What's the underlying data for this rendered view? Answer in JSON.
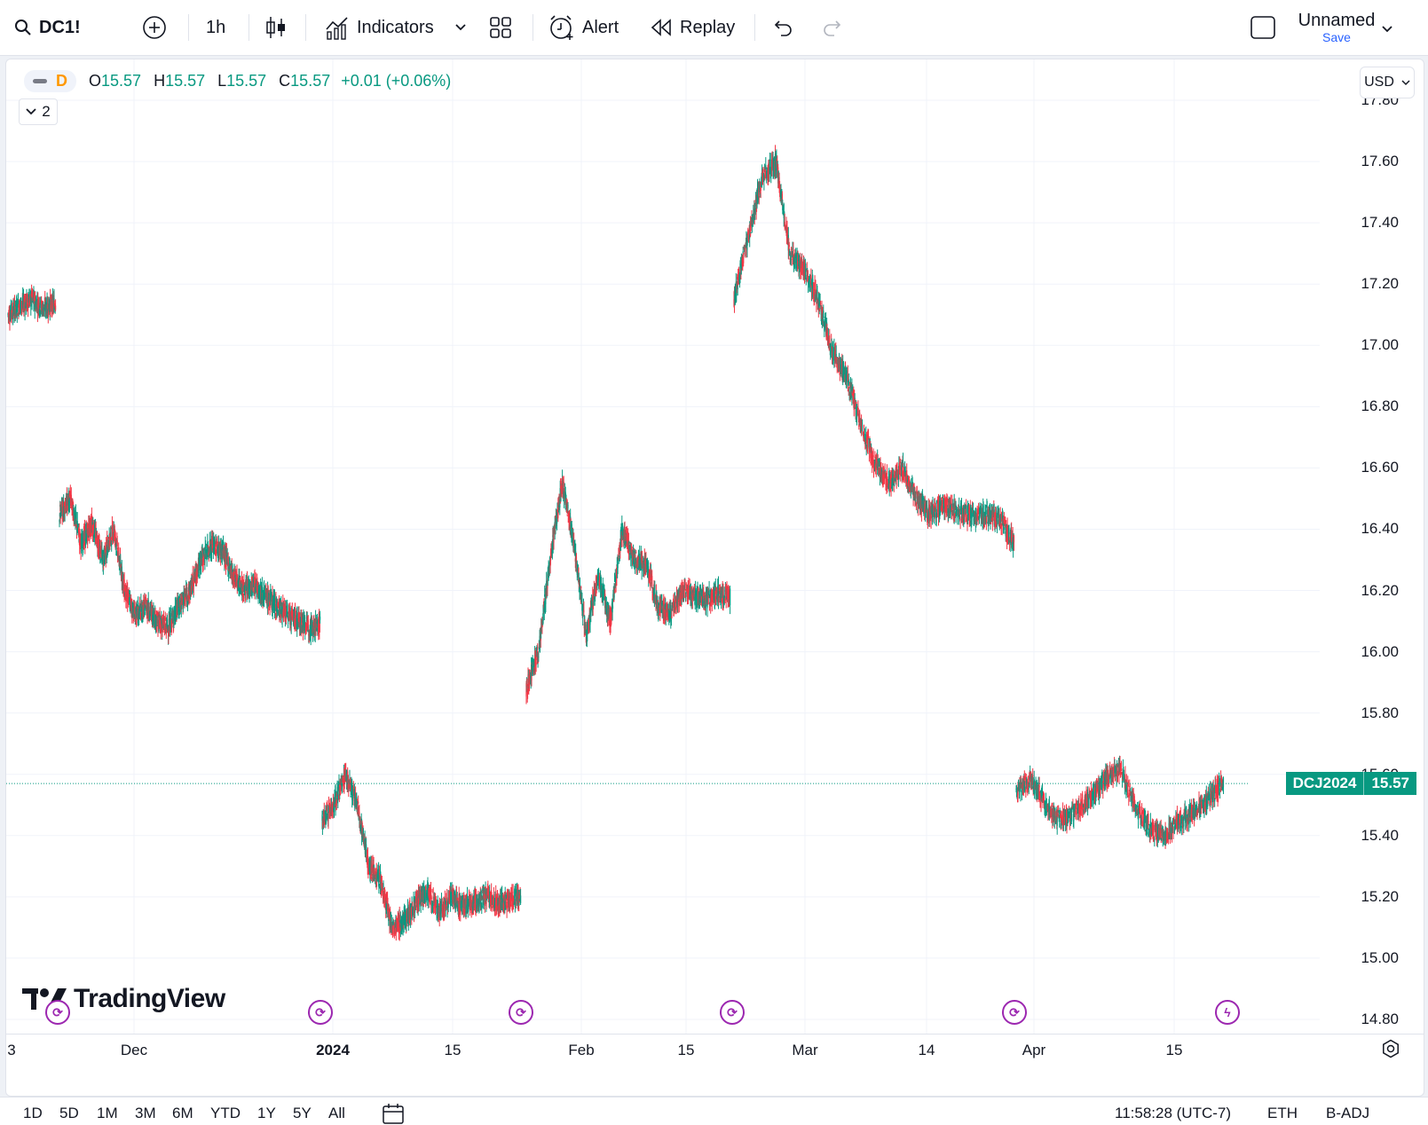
{
  "toolbar": {
    "symbol": "DC1!",
    "interval": "1h",
    "indicators_label": "Indicators",
    "alert_label": "Alert",
    "replay_label": "Replay",
    "layout_name": "Unnamed",
    "save_label": "Save"
  },
  "legend": {
    "interval_badge": "D",
    "o_label": "O",
    "o_value": "15.57",
    "h_label": "H",
    "h_value": "15.57",
    "l_label": "L",
    "l_value": "15.57",
    "c_label": "C",
    "c_value": "15.57",
    "change": "+0.01 (+0.06%)",
    "collapsed_count": "2"
  },
  "currency": "USD",
  "price_axis": [
    "17.80",
    "17.60",
    "17.40",
    "17.20",
    "17.00",
    "16.80",
    "16.60",
    "16.40",
    "16.20",
    "16.00",
    "15.80",
    "15.60",
    "15.40",
    "15.20",
    "15.00",
    "14.80"
  ],
  "time_axis": [
    "3",
    "Dec",
    "2024",
    "15",
    "Feb",
    "15",
    "Mar",
    "14",
    "Apr",
    "15"
  ],
  "last_price": {
    "symbol": "DCJ2024",
    "value": "15.57"
  },
  "branding": "TradingView",
  "bottom_bar": {
    "ranges": [
      "1D",
      "5D",
      "1M",
      "3M",
      "6M",
      "YTD",
      "1Y",
      "5Y",
      "All"
    ],
    "clock": "11:58:28 (UTC-7)",
    "session": "ETH",
    "adjust": "B-ADJ"
  },
  "colors": {
    "up": "#089981",
    "down": "#f23645",
    "accent": "#2962ff",
    "event": "#9c27b0"
  },
  "chart_data": {
    "type": "candlestick",
    "y_range": [
      14.8,
      17.8
    ],
    "segments": [
      {
        "from": "Nov",
        "to": "Nov",
        "values": [
          17.1,
          17.13,
          17.15,
          17.12,
          17.14
        ]
      },
      {
        "from": "Nov",
        "to": "Dec",
        "values": [
          16.45,
          16.5,
          16.35,
          16.42,
          16.3,
          16.4,
          16.2,
          16.12,
          16.15,
          16.1,
          16.08,
          16.15,
          16.2,
          16.3,
          16.35,
          16.33,
          16.25,
          16.2,
          16.22,
          16.18,
          16.15,
          16.12,
          16.1,
          16.08,
          16.09
        ]
      },
      {
        "from": "Dec",
        "to": "Jan",
        "values": [
          15.45,
          15.5,
          15.6,
          15.5,
          15.3,
          15.25,
          15.1,
          15.12,
          15.18,
          15.22,
          15.15,
          15.2,
          15.17,
          15.18,
          15.2,
          15.18,
          15.19,
          15.21
        ]
      },
      {
        "from": "Jan",
        "to": "Feb",
        "values": [
          15.88,
          16.0,
          16.3,
          16.55,
          16.35,
          16.05,
          16.25,
          16.1,
          16.4,
          16.3,
          16.28,
          16.15,
          16.12,
          16.2,
          16.18,
          16.17,
          16.19,
          16.18
        ]
      },
      {
        "from": "Feb",
        "to": "Mar",
        "values": [
          17.15,
          17.35,
          17.55,
          17.6,
          17.3,
          17.25,
          17.15,
          16.98,
          16.9,
          16.75,
          16.62,
          16.55,
          16.6,
          16.5,
          16.45,
          16.48,
          16.46,
          16.44,
          16.45,
          16.43,
          16.35
        ]
      },
      {
        "from": "Apr",
        "to": "Apr",
        "values": [
          15.55,
          15.58,
          15.5,
          15.45,
          15.48,
          15.52,
          15.58,
          15.62,
          15.5,
          15.42,
          15.4,
          15.45,
          15.48,
          15.52,
          15.57
        ]
      }
    ]
  }
}
